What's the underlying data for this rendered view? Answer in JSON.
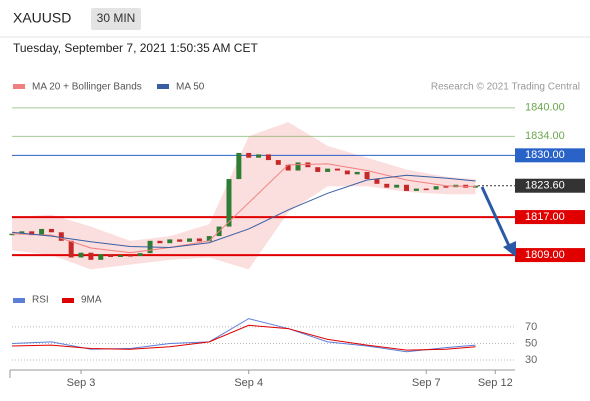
{
  "header": {
    "symbol": "XAUUSD",
    "interval": "30 MIN",
    "datetime": "Tuesday, September 7, 2021 1:50:35 AM CET",
    "credit": "Research © 2021 Trading Central"
  },
  "chart_data": [
    {
      "type": "candlestick",
      "values": [
        1813.5,
        1814.0,
        1813.2,
        1814.5,
        1813.8,
        1812.0,
        1808.5,
        1809.5,
        1808.0,
        1809.2,
        1808.6,
        1809.0,
        1808.8,
        1809.4,
        1812.0,
        1811.5,
        1812.3,
        1811.8,
        1812.5,
        1811.9,
        1813.0,
        1815.0,
        1825.0,
        1830.5,
        1829.5,
        1830.2,
        1829.0,
        1828.0,
        1826.8,
        1828.5,
        1827.5,
        1826.5,
        1827.2,
        1826.8,
        1826.0,
        1826.5,
        1825.0,
        1824.0,
        1823.2,
        1823.8,
        1822.5,
        1823.0,
        1822.8,
        1823.5,
        1823.3,
        1823.8,
        1823.2,
        1823.6
      ],
      "up_color": "#2e7d32",
      "down_color": "#c62828",
      "line_x": [
        0,
        4,
        8,
        12,
        16,
        20,
        24,
        28,
        32,
        36,
        40,
        44,
        47
      ],
      "series": [
        {
          "name": "MA 20 + Bollinger Bands",
          "color": "#f08080",
          "values": [
            1813.5,
            1813.2,
            1810.5,
            1809.5,
            1810.6,
            1812.0,
            1820.0,
            1828.0,
            1828.2,
            1826.8,
            1824.8,
            1823.6,
            1823.4
          ],
          "upper": [
            1817,
            1817.5,
            1815,
            1812,
            1813,
            1815.5,
            1834,
            1837,
            1832,
            1829.5,
            1827,
            1825.5,
            1825
          ],
          "lower": [
            1810,
            1809,
            1806,
            1807,
            1808,
            1808.5,
            1806,
            1818,
            1823.5,
            1823.5,
            1822.3,
            1821.8,
            1821.8
          ]
        },
        {
          "name": "MA 50",
          "color": "#3a5fa0",
          "values": [
            1813.8,
            1813.0,
            1811.8,
            1810.8,
            1810.6,
            1811.6,
            1814.5,
            1818.5,
            1822.0,
            1824.8,
            1825.8,
            1825.2,
            1824.6
          ]
        }
      ],
      "ylim": [
        1802.7,
        1842.7
      ],
      "yticks": [
        {
          "value": 1840,
          "label": "1840.00"
        },
        {
          "value": 1834,
          "label": "1834.00"
        },
        {
          "value": 1830,
          "label": "1830.00"
        },
        {
          "value": 1823.6,
          "label": "1823.60"
        },
        {
          "value": 1817,
          "label": "1817.00"
        },
        {
          "value": 1809,
          "label": "1809.00"
        }
      ],
      "tick_colors": [
        "#6aa84f",
        "#6aa84f",
        "#2a63c8",
        "#333333",
        "#e00000",
        "#e00000"
      ],
      "tick_boxed": [
        false,
        false,
        true,
        true,
        true,
        true
      ],
      "xlim": [
        0,
        51
      ]
    },
    {
      "type": "line",
      "x": [
        0,
        4,
        8,
        12,
        16,
        20,
        24,
        28,
        32,
        36,
        40,
        44,
        47
      ],
      "series": [
        {
          "name": "RSI",
          "color": "#5b7fd6",
          "values": [
            50,
            52,
            43,
            44,
            50,
            52,
            80,
            68,
            52,
            47,
            40,
            45,
            48
          ]
        },
        {
          "name": "9MA",
          "color": "#e00000",
          "values": [
            47,
            48,
            44,
            43,
            46,
            52,
            72,
            68,
            55,
            48,
            42,
            43,
            46
          ]
        }
      ],
      "ylim": [
        18,
        88
      ],
      "yticks": [
        70,
        50,
        30
      ],
      "xlim": [
        0,
        51
      ],
      "xticks": [
        {
          "value": 7,
          "label": "Sep 3"
        },
        {
          "value": 24,
          "label": "Sep 4"
        },
        {
          "value": 42,
          "label": "Sep 7"
        },
        {
          "value": 49,
          "label": "Sep 12"
        }
      ]
    }
  ]
}
